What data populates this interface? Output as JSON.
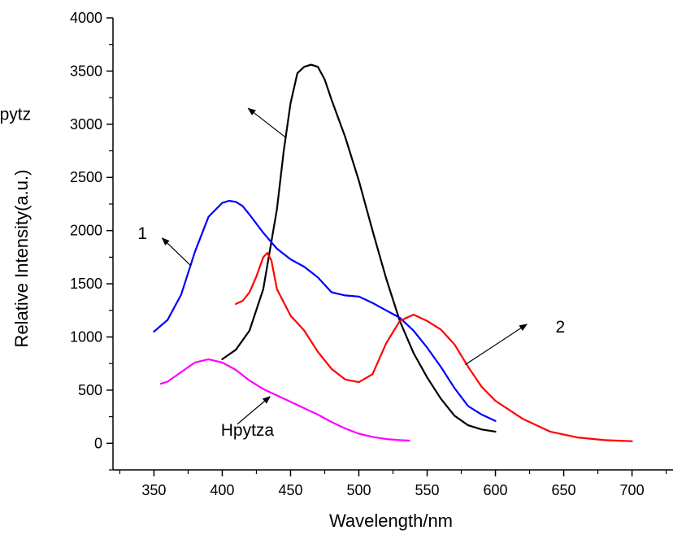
{
  "chart_data": {
    "type": "line",
    "title": "",
    "xlabel": "Wavelength/nm",
    "ylabel": "Relative Intensity(a.u.)",
    "xlim": [
      320,
      730
    ],
    "ylim": [
      -250,
      4000
    ],
    "xticks": [
      350,
      400,
      450,
      500,
      550,
      600,
      650,
      700
    ],
    "yticks": [
      0,
      500,
      1000,
      1500,
      2000,
      2500,
      3000,
      3500,
      4000
    ],
    "grid": false,
    "legend": "none",
    "series": [
      {
        "name": "Hpytz",
        "color": "#000000",
        "x": [
          400,
          410,
          420,
          430,
          440,
          445,
          450,
          455,
          460,
          465,
          470,
          475,
          480,
          490,
          500,
          510,
          520,
          530,
          540,
          550,
          560,
          570,
          580,
          590,
          600
        ],
        "y": [
          790,
          880,
          1060,
          1450,
          2200,
          2750,
          3200,
          3480,
          3540,
          3560,
          3540,
          3420,
          3230,
          2880,
          2470,
          2000,
          1550,
          1150,
          850,
          620,
          420,
          260,
          170,
          130,
          110
        ]
      },
      {
        "name": "1",
        "color": "#0000ff",
        "x": [
          350,
          360,
          370,
          380,
          390,
          400,
          405,
          410,
          415,
          420,
          430,
          440,
          450,
          460,
          470,
          480,
          490,
          500,
          510,
          520,
          530,
          540,
          550,
          560,
          570,
          580,
          590,
          600
        ],
        "y": [
          1050,
          1160,
          1400,
          1800,
          2130,
          2260,
          2280,
          2270,
          2230,
          2150,
          1980,
          1830,
          1730,
          1660,
          1560,
          1420,
          1390,
          1380,
          1320,
          1250,
          1180,
          1060,
          900,
          720,
          520,
          350,
          270,
          210
        ]
      },
      {
        "name": "2",
        "color": "#ff0000",
        "x": [
          410,
          415,
          420,
          425,
          430,
          433,
          436,
          440,
          450,
          460,
          470,
          480,
          490,
          500,
          510,
          520,
          530,
          540,
          550,
          560,
          570,
          580,
          590,
          600,
          620,
          640,
          660,
          680,
          700
        ],
        "y": [
          1310,
          1340,
          1420,
          1570,
          1750,
          1790,
          1720,
          1450,
          1200,
          1060,
          860,
          700,
          600,
          575,
          650,
          940,
          1150,
          1210,
          1150,
          1070,
          930,
          720,
          530,
          400,
          230,
          110,
          55,
          30,
          20
        ]
      },
      {
        "name": "Hpytza",
        "color": "#ff00ff",
        "x": [
          355,
          360,
          370,
          380,
          390,
          400,
          410,
          420,
          430,
          440,
          450,
          460,
          470,
          480,
          490,
          500,
          510,
          520,
          530,
          537
        ],
        "y": [
          560,
          580,
          670,
          760,
          790,
          760,
          690,
          590,
          510,
          450,
          390,
          330,
          270,
          200,
          140,
          90,
          60,
          40,
          30,
          25
        ]
      }
    ],
    "annotations": [
      {
        "text": "Hpytz",
        "series": "Hpytz"
      },
      {
        "text": "1",
        "series": "1"
      },
      {
        "text": "2",
        "series": "2"
      },
      {
        "text": "Hpytza",
        "series": "Hpytza"
      }
    ]
  }
}
